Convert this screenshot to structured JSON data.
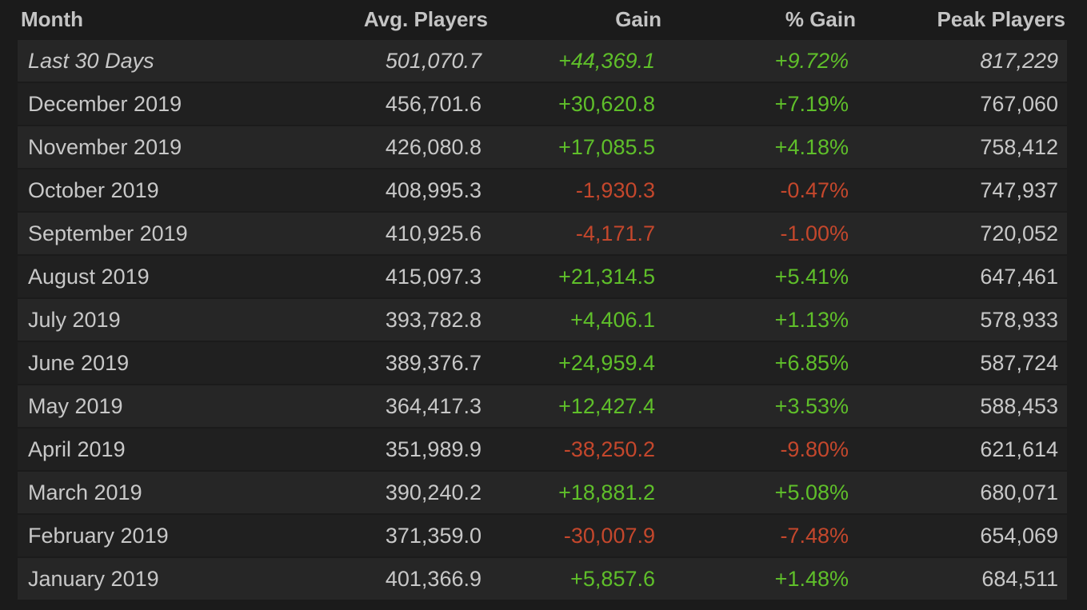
{
  "table": {
    "header": [
      "Month",
      "Avg. Players",
      "Gain",
      "% Gain",
      "Peak Players"
    ],
    "rows": [
      [
        "Last 30 Days",
        "501,070.7",
        "+44,369.1",
        "+9.72%",
        "817,229"
      ],
      [
        "December 2019",
        "456,701.6",
        "+30,620.8",
        "+7.19%",
        "767,060"
      ],
      [
        "November 2019",
        "426,080.8",
        "+17,085.5",
        "+4.18%",
        "758,412"
      ],
      [
        "October 2019",
        "408,995.3",
        "-1,930.3",
        "-0.47%",
        "747,937"
      ],
      [
        "September 2019",
        "410,925.6",
        "-4,171.7",
        "-1.00%",
        "720,052"
      ],
      [
        "August 2019",
        "415,097.3",
        "+21,314.5",
        "+5.41%",
        "647,461"
      ],
      [
        "July 2019",
        "393,782.8",
        "+4,406.1",
        "+1.13%",
        "578,933"
      ],
      [
        "June 2019",
        "389,376.7",
        "+24,959.4",
        "+6.85%",
        "587,724"
      ],
      [
        "May 2019",
        "364,417.3",
        "+12,427.4",
        "+3.53%",
        "588,453"
      ],
      [
        "April 2019",
        "351,989.9",
        "-38,250.2",
        "-9.80%",
        "621,614"
      ],
      [
        "March 2019",
        "390,240.2",
        "+18,881.2",
        "+5.08%",
        "680,071"
      ],
      [
        "February 2019",
        "371,359.0",
        "-30,007.9",
        "-7.48%",
        "654,069"
      ],
      [
        "January 2019",
        "401,366.9",
        "+5,857.6",
        "+1.48%",
        "684,511"
      ]
    ]
  }
}
